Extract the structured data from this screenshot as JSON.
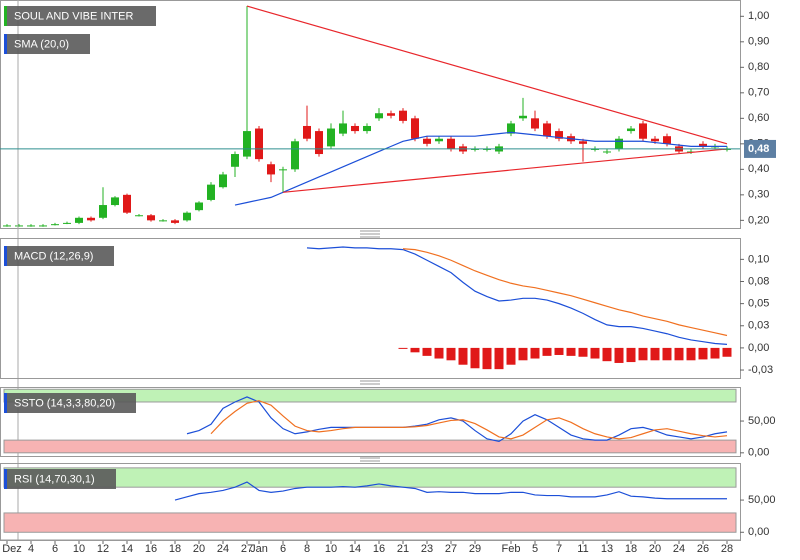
{
  "chart_data": [
    {
      "type": "candlestick",
      "categories": [
        "Dez",
        null,
        "4",
        null,
        "6",
        null,
        "10",
        null,
        "12",
        null,
        "14",
        null,
        "16",
        null,
        "18",
        null,
        "20",
        null,
        "24",
        null,
        "27",
        "Jan",
        null,
        "6",
        null,
        "8",
        null,
        "10",
        null,
        "14",
        null,
        "16",
        null,
        "21",
        null,
        "23",
        null,
        "27",
        null,
        "29",
        null,
        null,
        "Feb",
        null,
        "5",
        null,
        "7",
        null,
        "11",
        null,
        "13",
        null,
        "18",
        null,
        "20",
        null,
        "24",
        null,
        "26",
        null,
        "28"
      ],
      "series": [
        {
          "name": "SOUL AND VIBE INTER",
          "up_color": "#23b223",
          "down_color": "#e01818",
          "open": [
            0.18,
            0.18,
            0.18,
            0.18,
            0.185,
            0.19,
            0.19,
            0.21,
            0.21,
            0.26,
            0.3,
            0.22,
            0.22,
            0.2,
            0.2,
            0.2,
            0.24,
            0.28,
            0.33,
            0.41,
            0.45,
            0.56,
            0.42,
            0.4,
            0.4,
            0.57,
            0.55,
            0.49,
            0.54,
            0.57,
            0.55,
            0.6,
            0.62,
            0.63,
            0.6,
            0.52,
            0.51,
            0.52,
            0.49,
            0.48,
            0.48,
            0.47,
            0.54,
            0.6,
            0.6,
            0.58,
            0.55,
            0.53,
            0.51,
            0.48,
            0.47,
            0.48,
            0.55,
            0.58,
            0.52,
            0.53,
            0.49,
            0.47,
            0.5,
            0.49,
            0.48
          ],
          "high": [
            0.185,
            0.185,
            0.185,
            0.185,
            0.19,
            0.195,
            0.215,
            0.215,
            0.33,
            0.295,
            0.305,
            0.225,
            0.225,
            0.205,
            0.205,
            0.235,
            0.275,
            0.35,
            0.39,
            0.47,
            1.04,
            0.57,
            0.43,
            0.41,
            0.52,
            0.65,
            0.56,
            0.58,
            0.63,
            0.58,
            0.58,
            0.64,
            0.63,
            0.64,
            0.61,
            0.53,
            0.53,
            0.53,
            0.5,
            0.49,
            0.49,
            0.5,
            0.59,
            0.68,
            0.63,
            0.59,
            0.56,
            0.54,
            0.52,
            0.49,
            0.48,
            0.53,
            0.57,
            0.59,
            0.53,
            0.54,
            0.5,
            0.48,
            0.51,
            0.5,
            0.49
          ],
          "low": [
            0.175,
            0.175,
            0.175,
            0.175,
            0.18,
            0.185,
            0.185,
            0.195,
            0.205,
            0.255,
            0.225,
            0.215,
            0.195,
            0.195,
            0.185,
            0.195,
            0.235,
            0.275,
            0.325,
            0.37,
            0.44,
            0.43,
            0.35,
            0.31,
            0.39,
            0.51,
            0.45,
            0.48,
            0.53,
            0.54,
            0.54,
            0.59,
            0.6,
            0.58,
            0.51,
            0.49,
            0.5,
            0.47,
            0.46,
            0.47,
            0.47,
            0.46,
            0.53,
            0.59,
            0.55,
            0.52,
            0.51,
            0.5,
            0.43,
            0.47,
            0.46,
            0.47,
            0.54,
            0.51,
            0.5,
            0.49,
            0.46,
            0.46,
            0.48,
            0.48,
            0.47
          ],
          "close": [
            0.18,
            0.18,
            0.18,
            0.18,
            0.185,
            0.19,
            0.21,
            0.2,
            0.26,
            0.29,
            0.23,
            0.22,
            0.2,
            0.2,
            0.19,
            0.23,
            0.27,
            0.34,
            0.38,
            0.46,
            0.55,
            0.44,
            0.38,
            0.4,
            0.51,
            0.52,
            0.46,
            0.56,
            0.58,
            0.55,
            0.57,
            0.62,
            0.61,
            0.59,
            0.52,
            0.5,
            0.52,
            0.48,
            0.47,
            0.48,
            0.48,
            0.49,
            0.58,
            0.61,
            0.56,
            0.53,
            0.52,
            0.51,
            0.5,
            0.48,
            0.47,
            0.52,
            0.56,
            0.52,
            0.51,
            0.5,
            0.47,
            0.47,
            0.49,
            0.49,
            0.48
          ]
        },
        {
          "name": "SMA (20,0)",
          "color": "#1c4fd8",
          "values": [
            null,
            null,
            null,
            null,
            null,
            null,
            null,
            null,
            null,
            null,
            null,
            null,
            null,
            null,
            null,
            null,
            null,
            null,
            null,
            0.26,
            0.27,
            0.28,
            0.29,
            0.31,
            0.33,
            0.35,
            0.37,
            0.39,
            0.41,
            0.43,
            0.45,
            0.47,
            0.49,
            0.51,
            0.52,
            0.53,
            0.53,
            0.53,
            0.53,
            0.53,
            0.535,
            0.54,
            0.545,
            0.54,
            0.535,
            0.53,
            0.525,
            0.52,
            0.515,
            0.51,
            0.51,
            0.51,
            0.51,
            0.51,
            0.505,
            0.5,
            0.495,
            0.49,
            0.49,
            0.49,
            0.49
          ]
        }
      ],
      "trendlines": [
        {
          "color": "#e8262b",
          "x": [
            20,
            60
          ],
          "y": [
            1.04,
            0.5
          ]
        },
        {
          "color": "#e8262b",
          "x": [
            23,
            60
          ],
          "y": [
            0.31,
            0.48
          ]
        }
      ],
      "last": {
        "value": 0.48,
        "label": "0,48",
        "color": "#2f8f8f",
        "box_color": "#5d7fa3"
      },
      "ylim": [
        0.17,
        1.06
      ],
      "yticks": [
        {
          "value": 0.2,
          "label": "0,20"
        },
        {
          "value": 0.3,
          "label": "0,30"
        },
        {
          "value": 0.4,
          "label": "0,40"
        },
        {
          "value": 0.5,
          "label": "0,50"
        },
        {
          "value": 0.6,
          "label": "0,60"
        },
        {
          "value": 0.7,
          "label": "0,70"
        },
        {
          "value": 0.8,
          "label": "0,80"
        },
        {
          "value": 0.9,
          "label": "0,90"
        },
        {
          "value": 1.0,
          "label": "1,00"
        }
      ]
    },
    {
      "type": "line",
      "title": "MACD (12,26,9)",
      "series": [
        {
          "color": "#1c4fd8",
          "values": [
            null,
            null,
            null,
            null,
            null,
            null,
            null,
            null,
            null,
            null,
            null,
            null,
            null,
            null,
            null,
            null,
            null,
            null,
            null,
            null,
            null,
            null,
            null,
            null,
            null,
            0.113,
            0.112,
            0.113,
            0.114,
            0.113,
            0.113,
            0.112,
            0.112,
            0.111,
            0.106,
            0.099,
            0.092,
            0.085,
            0.074,
            0.064,
            0.058,
            0.053,
            0.054,
            0.056,
            0.056,
            0.054,
            0.05,
            0.045,
            0.039,
            0.032,
            0.026,
            0.024,
            0.024,
            0.022,
            0.019,
            0.016,
            0.012,
            0.009,
            0.007,
            0.005,
            0.004
          ]
        },
        {
          "color": "#f07020",
          "values": [
            null,
            null,
            null,
            null,
            null,
            null,
            null,
            null,
            null,
            null,
            null,
            null,
            null,
            null,
            null,
            null,
            null,
            null,
            null,
            null,
            null,
            null,
            null,
            null,
            null,
            null,
            null,
            null,
            null,
            null,
            null,
            null,
            null,
            0.112,
            0.111,
            0.108,
            0.104,
            0.099,
            0.093,
            0.087,
            0.082,
            0.077,
            0.073,
            0.07,
            0.068,
            0.065,
            0.062,
            0.059,
            0.055,
            0.051,
            0.047,
            0.043,
            0.04,
            0.036,
            0.033,
            0.03,
            0.026,
            0.023,
            0.02,
            0.017,
            0.014
          ]
        },
        {
          "type": "bar",
          "color": "#e01818",
          "values": [
            null,
            null,
            null,
            null,
            null,
            null,
            null,
            null,
            null,
            null,
            null,
            null,
            null,
            null,
            null,
            null,
            null,
            null,
            null,
            null,
            null,
            null,
            null,
            null,
            null,
            null,
            null,
            null,
            null,
            null,
            null,
            null,
            null,
            -0.001,
            -0.005,
            -0.009,
            -0.012,
            -0.014,
            -0.019,
            -0.023,
            -0.024,
            -0.024,
            -0.019,
            -0.014,
            -0.012,
            -0.009,
            -0.008,
            -0.009,
            -0.01,
            -0.012,
            -0.015,
            -0.017,
            -0.016,
            -0.014,
            -0.014,
            -0.014,
            -0.014,
            -0.014,
            -0.013,
            -0.012,
            -0.01
          ]
        }
      ],
      "ylim": [
        -0.034,
        0.123
      ],
      "yticks": [
        {
          "value": 0.1,
          "label": "0,10"
        },
        {
          "value": 0.075,
          "label": "0,08"
        },
        {
          "value": 0.05,
          "label": "0,05"
        },
        {
          "value": 0.025,
          "label": "0,03"
        },
        {
          "value": 0,
          "label": "0,00"
        },
        {
          "value": -0.025,
          "label": "-0,03"
        }
      ]
    },
    {
      "type": "line",
      "title": "SSTO (14,3,3,80,20)",
      "bands": [
        {
          "from": 80,
          "to": 100,
          "color": "#bff2b6"
        },
        {
          "from": 0,
          "to": 20,
          "color": "#f7b3b3"
        }
      ],
      "series": [
        {
          "color": "#1c4fd8",
          "values": [
            null,
            null,
            null,
            null,
            null,
            null,
            null,
            null,
            null,
            null,
            null,
            null,
            null,
            null,
            null,
            30,
            35,
            45,
            70,
            80,
            88,
            80,
            55,
            38,
            30,
            33,
            37,
            40,
            40,
            40,
            40,
            40,
            40,
            40,
            42,
            45,
            52,
            55,
            50,
            35,
            22,
            18,
            30,
            50,
            60,
            52,
            40,
            28,
            22,
            20,
            20,
            28,
            38,
            40,
            35,
            28,
            25,
            22,
            25,
            30,
            33
          ]
        },
        {
          "color": "#f07020",
          "values": [
            null,
            null,
            null,
            null,
            null,
            null,
            null,
            null,
            null,
            null,
            null,
            null,
            null,
            null,
            null,
            null,
            null,
            30,
            50,
            65,
            78,
            82,
            75,
            58,
            42,
            35,
            33,
            35,
            38,
            40,
            40,
            40,
            40,
            40,
            41,
            43,
            47,
            51,
            52,
            46,
            36,
            25,
            22,
            28,
            40,
            52,
            55,
            48,
            38,
            30,
            25,
            22,
            24,
            30,
            36,
            38,
            34,
            30,
            27,
            25,
            27
          ]
        }
      ],
      "ylim": [
        -5,
        102
      ],
      "yticks": [
        {
          "value": 0,
          "label": "0,00"
        },
        {
          "value": 50,
          "label": "50,00"
        }
      ]
    },
    {
      "type": "line",
      "title": "RSI (14,70,30,1)",
      "bands": [
        {
          "from": 70,
          "to": 100,
          "color": "#bff2b6"
        },
        {
          "from": 0,
          "to": 30,
          "color": "#f7b3b3"
        }
      ],
      "series": [
        {
          "color": "#1c4fd8",
          "values": [
            null,
            null,
            null,
            null,
            null,
            null,
            null,
            null,
            null,
            null,
            null,
            null,
            null,
            null,
            50,
            55,
            60,
            62,
            65,
            70,
            78,
            65,
            62,
            64,
            68,
            70,
            70,
            70,
            71,
            70,
            72,
            75,
            72,
            70,
            68,
            62,
            63,
            62,
            62,
            60,
            60,
            60,
            62,
            62,
            58,
            57,
            57,
            55,
            55,
            55,
            58,
            63,
            56,
            55,
            53,
            52,
            52,
            52,
            52,
            52,
            52
          ]
        }
      ],
      "ylim": [
        -12,
        106
      ],
      "yticks": [
        {
          "value": 0,
          "label": "0,00"
        },
        {
          "value": 50,
          "label": "50,00"
        }
      ]
    }
  ]
}
